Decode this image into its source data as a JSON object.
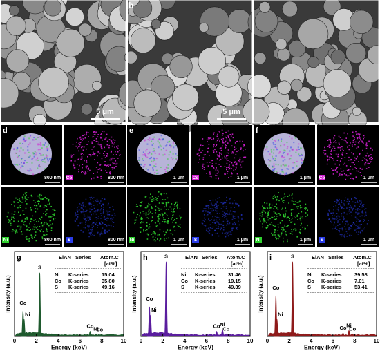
{
  "sem_panels": [
    {
      "scale_bar": "5 μm"
    },
    {
      "label": "b",
      "scale_bar": "5 μm"
    }
  ],
  "mapping": [
    {
      "label": "d",
      "scale_bar": "800 nm",
      "elements": [
        "Co",
        "Ni",
        "S"
      ]
    },
    {
      "label": "e",
      "scale_bar": "1 μm",
      "elements": [
        "Co",
        "Ni",
        "S"
      ]
    },
    {
      "label": "f",
      "scale_bar": "1 μm",
      "elements": [
        "Co",
        "Ni",
        "S"
      ]
    }
  ],
  "spectra": [
    {
      "type": "spectrum",
      "label": "g",
      "color": "#1f5a2e",
      "xlabel": "Energy (keV)",
      "ylabel": "Intensity (a.u.)",
      "xlim": [
        0,
        10
      ],
      "xticks": [
        0,
        2,
        4,
        6,
        8,
        10
      ],
      "ylim": [
        0,
        100
      ],
      "table": {
        "header": [
          "ElAN",
          "Series",
          "Atom.C",
          "[at%]"
        ],
        "rows": [
          [
            "Ni",
            "K-series",
            "15.04"
          ],
          [
            "Co",
            "K-series",
            "35.80"
          ],
          [
            "S",
            "K-series",
            "49.16"
          ]
        ]
      },
      "peaks": [
        {
          "label": "Co",
          "x": 0.78,
          "y": 30
        },
        {
          "label": "Ni",
          "x": 0.88,
          "y": 20
        },
        {
          "label": "S",
          "x": 2.31,
          "y": 75
        },
        {
          "label": "Co",
          "x": 6.93,
          "y": 6
        },
        {
          "label": "Ni",
          "x": 7.47,
          "y": 3
        },
        {
          "label": "Co",
          "x": 7.8,
          "y": 2
        }
      ]
    },
    {
      "type": "spectrum",
      "label": "h",
      "color": "#5a1d9e",
      "xlabel": "Energy (keV)",
      "ylabel": "Intensity (a.u.)",
      "xlim": [
        0,
        10
      ],
      "xticks": [
        0,
        2,
        4,
        6,
        8,
        10
      ],
      "ylim": [
        0,
        100
      ],
      "table": {
        "header": [
          "ElAN",
          "Series",
          "Atom.C",
          "[at%]"
        ],
        "rows": [
          [
            "Ni",
            "K-series",
            "31.46"
          ],
          [
            "Co",
            "K-series",
            "19.15"
          ],
          [
            "S",
            "K-series",
            "49.39"
          ]
        ]
      },
      "peaks": [
        {
          "label": "Co",
          "x": 0.78,
          "y": 35
        },
        {
          "label": "Ni",
          "x": 0.88,
          "y": 25
        },
        {
          "label": "S",
          "x": 2.31,
          "y": 88
        },
        {
          "label": "Co",
          "x": 6.93,
          "y": 6
        },
        {
          "label": "Ni",
          "x": 7.47,
          "y": 8
        },
        {
          "label": "Co",
          "x": 7.8,
          "y": 3
        }
      ]
    },
    {
      "type": "spectrum",
      "label": "i",
      "color": "#8e1b1b",
      "xlabel": "Energy (keV)",
      "ylabel": "Intensity (a.u.)",
      "xlim": [
        0,
        10
      ],
      "xticks": [
        0,
        2,
        4,
        6,
        8,
        10
      ],
      "ylim": [
        0,
        100
      ],
      "table": {
        "header": [
          "ElAN",
          "Series",
          "Atom.C",
          "[at%]"
        ],
        "rows": [
          [
            "Ni",
            "K-series",
            "39.58"
          ],
          [
            "Co",
            "K-series",
            "7.01"
          ],
          [
            "S",
            "K-series",
            "53.41"
          ]
        ]
      },
      "peaks": [
        {
          "label": "Co",
          "x": 0.78,
          "y": 48
        },
        {
          "label": "Ni",
          "x": 0.88,
          "y": 20
        },
        {
          "label": "S",
          "x": 2.31,
          "y": 88
        },
        {
          "label": "Co",
          "x": 6.93,
          "y": 4
        },
        {
          "label": "Ni",
          "x": 7.47,
          "y": 7
        },
        {
          "label": "Co",
          "x": 7.8,
          "y": 3
        }
      ]
    }
  ]
}
